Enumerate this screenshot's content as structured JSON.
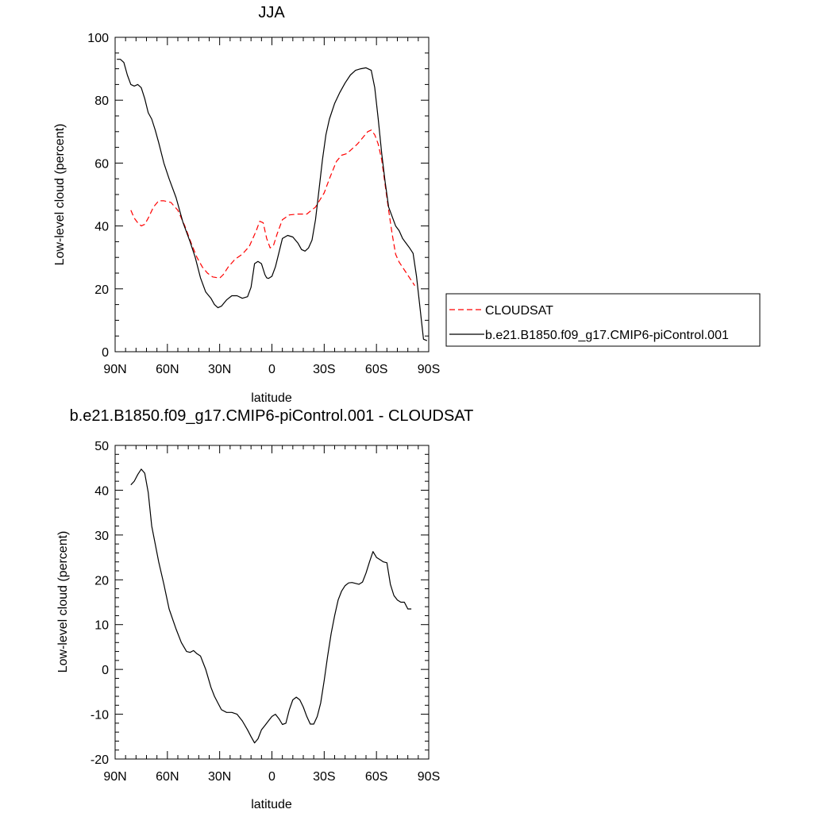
{
  "chart_data": [
    {
      "type": "line",
      "title": "JJA",
      "xlabel": "latitude",
      "ylabel": "Low-level cloud (percent)",
      "xlim": [
        90,
        -90
      ],
      "ylim": [
        0,
        100
      ],
      "x_ticks": [
        {
          "v": 90,
          "label": "90N"
        },
        {
          "v": 60,
          "label": "60N"
        },
        {
          "v": 30,
          "label": "30N"
        },
        {
          "v": 0,
          "label": "0"
        },
        {
          "v": -30,
          "label": "30S"
        },
        {
          "v": -60,
          "label": "60S"
        },
        {
          "v": -90,
          "label": "90S"
        }
      ],
      "y_ticks": [
        {
          "v": 0,
          "label": "0"
        },
        {
          "v": 20,
          "label": "20"
        },
        {
          "v": 40,
          "label": "40"
        },
        {
          "v": 60,
          "label": "60"
        },
        {
          "v": 80,
          "label": "80"
        },
        {
          "v": 100,
          "label": "100"
        }
      ],
      "legend": {
        "position": "right-middle"
      },
      "series": [
        {
          "name": "CLOUDSAT",
          "color": "#ff0000",
          "style": "dashed",
          "x": [
            81,
            79,
            77,
            75,
            73,
            71,
            68,
            65,
            62,
            58,
            54,
            50,
            46,
            43,
            40,
            37,
            34,
            30,
            28,
            25,
            21,
            17,
            13,
            9,
            7,
            5,
            3,
            1,
            -1,
            -3,
            -6,
            -10,
            -15,
            -20,
            -25,
            -30,
            -33,
            -37,
            -40,
            -43,
            -46,
            -49,
            -52,
            -55,
            -57,
            -59,
            -61,
            -63,
            -65,
            -67,
            -69,
            -71,
            -73,
            -76,
            -79,
            -82
          ],
          "y": [
            45,
            42.5,
            41,
            40,
            40.5,
            42.5,
            46,
            48,
            48,
            47.5,
            45,
            40,
            34,
            30,
            27,
            25,
            23.8,
            23.4,
            24.5,
            27,
            29.5,
            31,
            33.5,
            38.5,
            41.5,
            41,
            36,
            33,
            34,
            37.5,
            42,
            43.5,
            43.8,
            43.8,
            46,
            50.5,
            55,
            60.5,
            62.5,
            63,
            64.5,
            66,
            68,
            70,
            70.5,
            69,
            66,
            61,
            53,
            45,
            37.5,
            31,
            28.5,
            26,
            23.5,
            21
          ]
        },
        {
          "name": "b.e21.B1850.f09_g17.CMIP6-piControl.001",
          "color": "#000000",
          "style": "solid",
          "x": [
            89,
            87,
            85,
            83,
            81,
            79,
            77,
            75,
            73,
            71,
            69,
            67,
            65,
            62,
            59,
            55,
            51,
            47,
            44,
            41,
            38,
            35,
            33,
            31,
            29,
            26,
            23,
            20,
            17,
            14,
            12,
            10,
            8,
            6,
            4,
            3,
            2,
            0,
            -2,
            -4,
            -6,
            -9,
            -12,
            -15,
            -17,
            -19,
            -21,
            -23,
            -25,
            -27,
            -29,
            -31,
            -33,
            -36,
            -39,
            -42,
            -45,
            -48,
            -51,
            -54,
            -57,
            -59,
            -61,
            -63,
            -65,
            -67,
            -69,
            -71,
            -73,
            -75,
            -77,
            -79,
            -81,
            -83,
            -85,
            -87,
            -89
          ],
          "y": [
            93,
            93,
            92,
            88,
            85,
            84.5,
            85,
            84,
            80.5,
            76,
            74,
            70.5,
            66.5,
            60,
            55,
            49,
            41,
            35,
            30,
            23.5,
            19,
            17,
            15,
            14,
            14.5,
            16.5,
            17.8,
            17.8,
            17,
            17.5,
            20.5,
            28,
            28.7,
            28,
            24.5,
            23.5,
            23.3,
            24,
            27,
            31.5,
            36,
            37,
            36.5,
            34.5,
            32.5,
            32,
            33,
            35.5,
            42,
            51.5,
            61,
            69,
            74,
            79,
            82.5,
            85.5,
            88,
            89.5,
            90,
            90.3,
            89.5,
            84,
            74,
            63,
            54,
            46,
            43,
            40,
            38.5,
            36,
            34.5,
            33,
            31.3,
            24,
            14,
            4,
            3.5
          ]
        }
      ]
    },
    {
      "type": "line",
      "title": "b.e21.B1850.f09_g17.CMIP6-piControl.001 - CLOUDSAT",
      "xlabel": "latitude",
      "ylabel": "Low-level cloud (percent)",
      "xlim": [
        90,
        -90
      ],
      "ylim": [
        -20,
        50
      ],
      "x_ticks": [
        {
          "v": 90,
          "label": "90N"
        },
        {
          "v": 60,
          "label": "60N"
        },
        {
          "v": 30,
          "label": "30N"
        },
        {
          "v": 0,
          "label": "0"
        },
        {
          "v": -30,
          "label": "30S"
        },
        {
          "v": -60,
          "label": "60S"
        },
        {
          "v": -90,
          "label": "90S"
        }
      ],
      "y_ticks": [
        {
          "v": -20,
          "label": "-20"
        },
        {
          "v": -10,
          "label": "-10"
        },
        {
          "v": 0,
          "label": "0"
        },
        {
          "v": 10,
          "label": "10"
        },
        {
          "v": 20,
          "label": "20"
        },
        {
          "v": 30,
          "label": "30"
        },
        {
          "v": 40,
          "label": "40"
        },
        {
          "v": 50,
          "label": "50"
        }
      ],
      "series": [
        {
          "color": "#000000",
          "style": "solid",
          "x": [
            81,
            79,
            77,
            75,
            73,
            71,
            69,
            67,
            65,
            62,
            59,
            55,
            52,
            49,
            47,
            45,
            43,
            41,
            38,
            35,
            33,
            31,
            29,
            26,
            23,
            20,
            17,
            14,
            12,
            10,
            8,
            6,
            4,
            2,
            0,
            -2,
            -4,
            -6,
            -8,
            -10,
            -12,
            -14,
            -16,
            -18,
            -20,
            -22,
            -24,
            -26,
            -28,
            -30,
            -32,
            -34,
            -36,
            -38,
            -40,
            -42,
            -44,
            -46,
            -48,
            -50,
            -52,
            -54,
            -56,
            -58,
            -60,
            -62,
            -64,
            -66,
            -68,
            -70,
            -72,
            -74,
            -76,
            -78,
            -80
          ],
          "y": [
            41.2,
            42,
            43.5,
            44.7,
            43.8,
            39.5,
            32,
            28,
            24,
            19,
            13.5,
            9,
            6,
            4,
            3.8,
            4.2,
            3.5,
            3,
            0,
            -4,
            -6,
            -7.5,
            -9,
            -9.6,
            -9.6,
            -10,
            -11.5,
            -13.5,
            -15,
            -16.4,
            -15.5,
            -13.5,
            -12.5,
            -11.5,
            -10.5,
            -10,
            -11,
            -12.3,
            -12,
            -9,
            -6.8,
            -6.2,
            -6.8,
            -8.4,
            -10.5,
            -12.2,
            -12.2,
            -10.5,
            -7.5,
            -2.5,
            3,
            8,
            12,
            15.5,
            17.5,
            18.7,
            19.3,
            19.4,
            19.2,
            19,
            19.5,
            21.5,
            24,
            26.3,
            25,
            24.5,
            24,
            23.8,
            19,
            16.5,
            15.5,
            15,
            15,
            13.5,
            13.5
          ]
        }
      ]
    }
  ]
}
